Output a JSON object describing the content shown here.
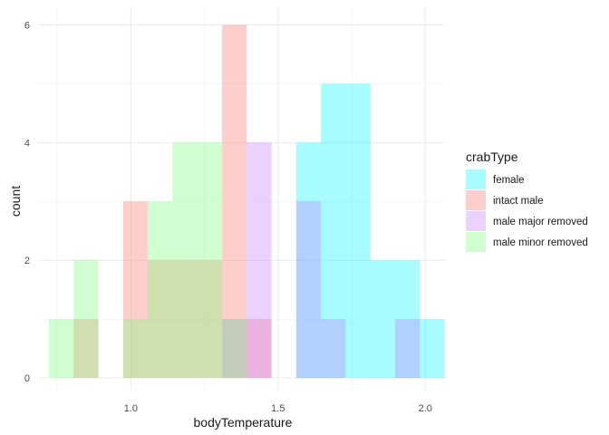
{
  "chart_data": {
    "type": "histogram",
    "xlabel": "bodyTemperature",
    "ylabel": "count",
    "xlim": [
      0.685,
      2.07
    ],
    "ylim": [
      -0.2,
      6.3
    ],
    "x_ticks": [
      1.0,
      1.5,
      2.0
    ],
    "x_tick_labels": [
      "1.0",
      "1.5",
      "2.0"
    ],
    "y_ticks": [
      0,
      2,
      4,
      6
    ],
    "y_tick_labels": [
      "0",
      "2",
      "4",
      "6"
    ],
    "grid": true,
    "legend_placement": "right",
    "legend_title": "crabType",
    "bin_starts": [
      0.722,
      0.806,
      0.89,
      0.974,
      1.058,
      1.142,
      1.226,
      1.31,
      1.394,
      1.478,
      1.562,
      1.646,
      1.73,
      1.814,
      1.898,
      1.982
    ],
    "bin_width": 0.084,
    "series": [
      {
        "name": "female",
        "color": "#00F5FF",
        "values": [
          0,
          0,
          0,
          0,
          0,
          0,
          0,
          0,
          0,
          0,
          4,
          5,
          5,
          2,
          2,
          1
        ]
      },
      {
        "name": "intact male",
        "color": "#F8766D",
        "values": [
          0,
          1,
          0,
          3,
          2,
          2,
          2,
          6,
          1,
          0,
          0,
          0,
          0,
          0,
          0,
          0
        ]
      },
      {
        "name": "male major removed",
        "color": "#C77CFF",
        "values": [
          0,
          0,
          0,
          0,
          0,
          0,
          0,
          1,
          4,
          0,
          3,
          1,
          0,
          0,
          1,
          0
        ]
      },
      {
        "name": "male minor removed",
        "color": "#7CFC7C",
        "values": [
          1,
          2,
          0,
          1,
          3,
          4,
          4,
          1,
          0,
          0,
          0,
          0,
          0,
          0,
          0,
          0
        ]
      }
    ],
    "fill_opacity": 0.35
  }
}
